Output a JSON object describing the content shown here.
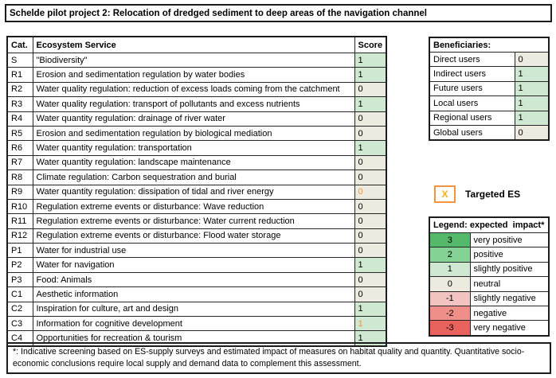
{
  "title": "Schelde pilot project 2: Relocation of dredged sediment to deep areas of the navigation channel",
  "colors": {
    "green_1": "#cfe8d1",
    "green_2": "#85d295",
    "green_3": "#55b96b",
    "neutral": "#edeae0",
    "red_1": "#f2c3c0",
    "red_2": "#ee8f8a",
    "red_3": "#e9625e",
    "orange": "#f2953c",
    "amber": "#f2b01e"
  },
  "es_table": {
    "headers": [
      "Cat.",
      "Ecosystem Service",
      "Score"
    ],
    "rows": [
      {
        "cat": "S",
        "service": "\"Biodiversity\"",
        "score": 1,
        "targeted": false
      },
      {
        "cat": "R1",
        "service": "Erosion and sedimentation regulation by water bodies",
        "score": 1,
        "targeted": false
      },
      {
        "cat": "R2",
        "service": "Water quality regulation: reduction of excess loads coming from the catchment",
        "score": 0,
        "targeted": false
      },
      {
        "cat": "R3",
        "service": "Water quality regulation: transport of pollutants and excess nutrients",
        "score": 1,
        "targeted": false
      },
      {
        "cat": "R4",
        "service": "Water quantity regulation: drainage of river water",
        "score": 0,
        "targeted": false
      },
      {
        "cat": "R5",
        "service": "Erosion and sedimentation regulation by biological mediation",
        "score": 0,
        "targeted": false
      },
      {
        "cat": "R6",
        "service": "Water quantity regulation: transportation",
        "score": 1,
        "targeted": false
      },
      {
        "cat": "R7",
        "service": "Water quantity regulation: landscape maintenance",
        "score": 0,
        "targeted": false
      },
      {
        "cat": "R8",
        "service": "Climate regulation: Carbon sequestration and burial",
        "score": 0,
        "targeted": false
      },
      {
        "cat": "R9",
        "service": "Water quantity regulation: dissipation of tidal and river energy",
        "score": 0,
        "targeted": true
      },
      {
        "cat": "R10",
        "service": "Regulation extreme events or disturbance: Wave reduction",
        "score": 0,
        "targeted": false
      },
      {
        "cat": "R11",
        "service": "Regulation extreme events or disturbance: Water current reduction",
        "score": 0,
        "targeted": false
      },
      {
        "cat": "R12",
        "service": "Regulation extreme events or disturbance: Flood water storage",
        "score": 0,
        "targeted": false
      },
      {
        "cat": "P1",
        "service": "Water for industrial use",
        "score": 0,
        "targeted": false
      },
      {
        "cat": "P2",
        "service": "Water for navigation",
        "score": 1,
        "targeted": false
      },
      {
        "cat": "P3",
        "service": "Food: Animals",
        "score": 0,
        "targeted": false
      },
      {
        "cat": "C1",
        "service": "Aesthetic information",
        "score": 0,
        "targeted": false
      },
      {
        "cat": "C2",
        "service": "Inspiration for culture, art and design",
        "score": 1,
        "targeted": false
      },
      {
        "cat": "C3",
        "service": "Information for cognitive development",
        "score": 1,
        "targeted": true
      },
      {
        "cat": "C4",
        "service": "Opportunities for recreation & tourism",
        "score": 1,
        "targeted": false
      }
    ]
  },
  "beneficiaries": {
    "title": "Beneficiaries:",
    "rows": [
      {
        "label": "Direct users",
        "score": 0
      },
      {
        "label": "Indirect users",
        "score": 1
      },
      {
        "label": "Future users",
        "score": 1
      },
      {
        "label": "Local users",
        "score": 1
      },
      {
        "label": "Regional users",
        "score": 1
      },
      {
        "label": "Global users",
        "score": 0
      }
    ]
  },
  "targeted_key": {
    "symbol": "X",
    "label": "Targeted ES"
  },
  "legend": {
    "title": "Legend: expected  impact*",
    "rows": [
      {
        "value": 3,
        "label": "very positive",
        "color_key": "green_3"
      },
      {
        "value": 2,
        "label": "positive",
        "color_key": "green_2"
      },
      {
        "value": 1,
        "label": "slightly positive",
        "color_key": "green_1"
      },
      {
        "value": 0,
        "label": "neutral",
        "color_key": "neutral"
      },
      {
        "value": -1,
        "label": "slightly negative",
        "color_key": "red_1"
      },
      {
        "value": -2,
        "label": "negative",
        "color_key": "red_2"
      },
      {
        "value": -3,
        "label": "very negative",
        "color_key": "red_3"
      }
    ]
  },
  "footnote": "*: Indicative screening based on ES-supply surveys and estimated impact of measures on habitat quality and quantity. Quantitative socio-economic conclusions require local supply and demand data to complement this assessment."
}
